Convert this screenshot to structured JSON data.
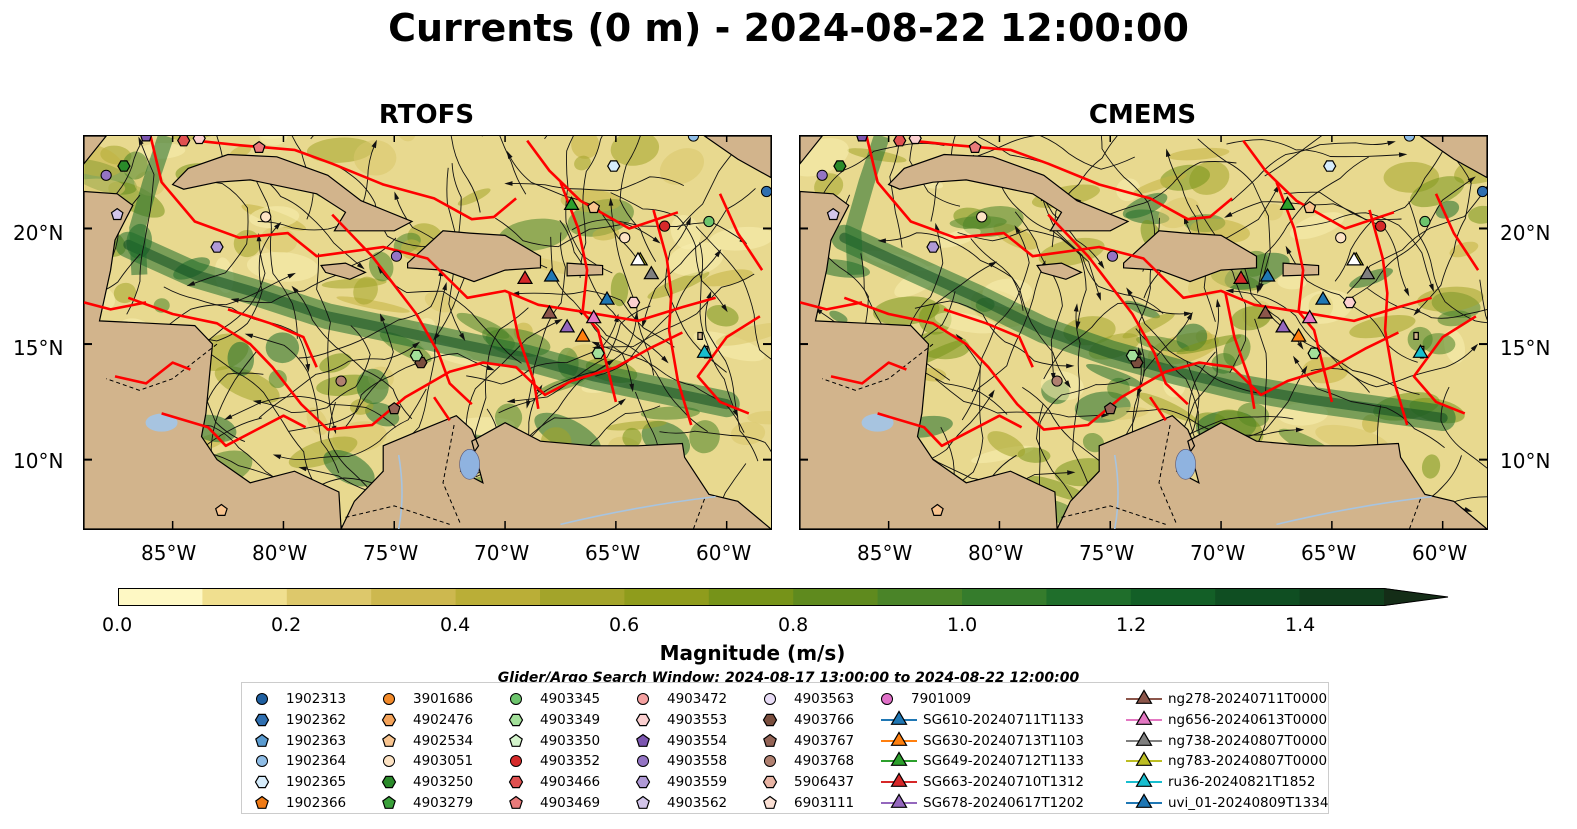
{
  "title": "Currents (0 m) - 2024-08-22 12:00:00",
  "panels": [
    {
      "id": "rtofs",
      "title": "RTOFS"
    },
    {
      "id": "cmems",
      "title": "CMEMS"
    }
  ],
  "lat_labels": [
    "20°N",
    "15°N",
    "10°N"
  ],
  "lon_labels": [
    "85°W",
    "80°W",
    "75°W",
    "70°W",
    "65°W",
    "60°W"
  ],
  "colorbar": {
    "title": "Magnitude (m/s)",
    "min": 0.0,
    "max": 1.5,
    "extend": "max",
    "ticks": [
      "0.0",
      "0.2",
      "0.4",
      "0.6",
      "0.8",
      "1.0",
      "1.2",
      "1.4"
    ],
    "colors": [
      "#fef8c4",
      "#f0df8f",
      "#ddc86b",
      "#cdb84f",
      "#baae37",
      "#a3a42a",
      "#8f9c1c",
      "#769319",
      "#5f8a1e",
      "#4a8428",
      "#357c2c",
      "#1f6e2b",
      "#135f27",
      "#0f4e22",
      "#10401d",
      "#142d17"
    ]
  },
  "search_window": "Glider/Argo Search Window: 2024-08-17 13:00:00 to 2024-08-22 12:00:00",
  "legend": {
    "columns": [
      [
        {
          "label": "1902313",
          "shape": "circle",
          "color": "#1f5fa0"
        },
        {
          "label": "1902362",
          "shape": "hexagon",
          "color": "#2f6fb0"
        },
        {
          "label": "1902363",
          "shape": "pentagon",
          "color": "#5a9bd0"
        },
        {
          "label": "1902364",
          "shape": "circle",
          "color": "#8fbde6"
        },
        {
          "label": "1902365",
          "shape": "hexagon",
          "color": "#d6ecfb"
        },
        {
          "label": "1902366",
          "shape": "pentagon",
          "color": "#f07a14"
        }
      ],
      [
        {
          "label": "3901686",
          "shape": "circle",
          "color": "#f28a2a"
        },
        {
          "label": "4902476",
          "shape": "hexagon",
          "color": "#f4a35a"
        },
        {
          "label": "4902534",
          "shape": "pentagon",
          "color": "#f8c48f"
        },
        {
          "label": "4903051",
          "shape": "circle",
          "color": "#fde3c4"
        },
        {
          "label": "4903250",
          "shape": "hexagon",
          "color": "#2a8a2a"
        },
        {
          "label": "4903279",
          "shape": "pentagon",
          "color": "#3aa03a"
        }
      ],
      [
        {
          "label": "4903345",
          "shape": "circle",
          "color": "#6cc46c"
        },
        {
          "label": "4903349",
          "shape": "hexagon",
          "color": "#a3e09a"
        },
        {
          "label": "4903350",
          "shape": "pentagon",
          "color": "#d4f4cc"
        },
        {
          "label": "4903352",
          "shape": "circle",
          "color": "#d62a2a"
        },
        {
          "label": "4903466",
          "shape": "hexagon",
          "color": "#e05050"
        },
        {
          "label": "4903469",
          "shape": "pentagon",
          "color": "#ea7b7b"
        }
      ],
      [
        {
          "label": "4903472",
          "shape": "circle",
          "color": "#f4a0a0"
        },
        {
          "label": "4903553",
          "shape": "hexagon",
          "color": "#fbd0d0"
        },
        {
          "label": "4903554",
          "shape": "pentagon",
          "color": "#7c56b0"
        },
        {
          "label": "4903558",
          "shape": "circle",
          "color": "#9474c4"
        },
        {
          "label": "4903559",
          "shape": "hexagon",
          "color": "#b09ad6"
        },
        {
          "label": "4903562",
          "shape": "pentagon",
          "color": "#d3c5ea"
        }
      ],
      [
        {
          "label": "4903563",
          "shape": "circle",
          "color": "#e8dcf6"
        },
        {
          "label": "4903766",
          "shape": "hexagon",
          "color": "#7a4e3e"
        },
        {
          "label": "4903767",
          "shape": "pentagon",
          "color": "#946456"
        },
        {
          "label": "4903768",
          "shape": "circle",
          "color": "#b08070"
        },
        {
          "label": "5906437",
          "shape": "hexagon",
          "color": "#e8b4a4"
        },
        {
          "label": "6903111",
          "shape": "pentagon",
          "color": "#fbe0d4"
        }
      ],
      [
        {
          "label": "7901009",
          "shape": "circle",
          "color": "#e070c8",
          "line": false
        },
        {
          "label": "SG610-20240711T1133",
          "shape": "triangle",
          "color": "#1f77b4",
          "line": true
        },
        {
          "label": "SG630-20240713T1103",
          "shape": "triangle",
          "color": "#ff7f0e",
          "line": true
        },
        {
          "label": "SG649-20240712T1133",
          "shape": "triangle",
          "color": "#2ca02c",
          "line": true
        },
        {
          "label": "SG663-20240710T1312",
          "shape": "triangle",
          "color": "#d62728",
          "line": true
        },
        {
          "label": "SG678-20240617T1202",
          "shape": "triangle",
          "color": "#9467bd",
          "line": true
        }
      ],
      [
        {
          "label": "ng278-20240711T0000",
          "shape": "triangle",
          "color": "#8c564b",
          "line": true
        },
        {
          "label": "ng656-20240613T0000",
          "shape": "triangle",
          "color": "#e377c2",
          "line": true
        },
        {
          "label": "ng738-20240807T0000",
          "shape": "triangle",
          "color": "#7f7f7f",
          "line": true
        },
        {
          "label": "ng783-20240807T0000",
          "shape": "triangle",
          "color": "#bcbd22",
          "line": true
        },
        {
          "label": "ru36-20240821T1852",
          "shape": "triangle",
          "color": "#17becf",
          "line": true
        },
        {
          "label": "uvi_01-20240809T1334",
          "shape": "triangle",
          "color": "#1f77b4",
          "line": true
        }
      ]
    ]
  },
  "colors": {
    "land": "#d2b48c",
    "water_inland": "#a7c4e0",
    "lake": "#8fb3e0",
    "eez": "#ff0000",
    "stream": "#000000"
  }
}
